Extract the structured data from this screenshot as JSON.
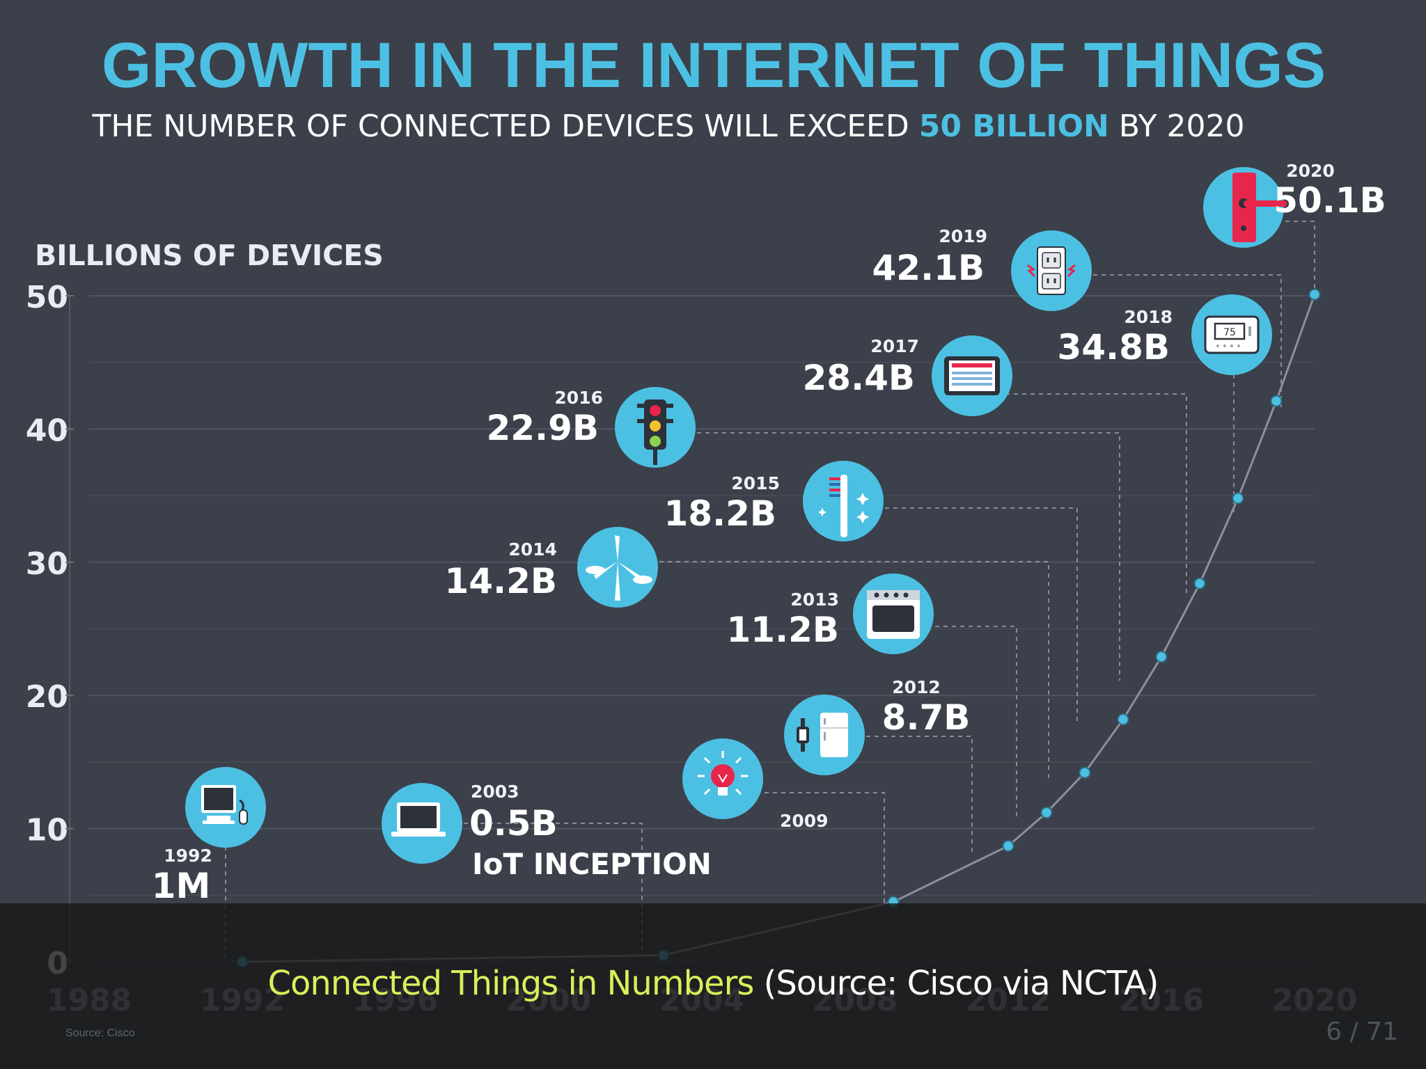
{
  "header": {
    "title": "GROWTH IN THE INTERNET OF THINGS",
    "subtitle_pre": "THE NUMBER OF CONNECTED DEVICES WILL EXCEED ",
    "subtitle_highlight": "50 BILLION",
    "subtitle_post": " BY 2020"
  },
  "chart_data": {
    "type": "line",
    "title": "GROWTH IN THE INTERNET OF THINGS",
    "subtitle": "THE NUMBER OF CONNECTED DEVICES WILL EXCEED 50 BILLION BY 2020",
    "xlabel": "",
    "ylabel": "BILLIONS OF DEVICES",
    "xlim": [
      1988,
      2020
    ],
    "ylim": [
      0,
      50
    ],
    "yticks": [
      0,
      10,
      20,
      30,
      40,
      50
    ],
    "xticks": [
      1988,
      1992,
      1996,
      2000,
      2004,
      2008,
      2012,
      2016,
      2020
    ],
    "xtick_labels": [
      "1988",
      "1992",
      "1996",
      "2000",
      "2004",
      "2008",
      "2012",
      "2016",
      "2020"
    ],
    "grid": true,
    "series": [
      {
        "x": [
          1992,
          2003,
          2009,
          2012,
          2013,
          2014,
          2015,
          2016,
          2017,
          2018,
          2019,
          2020
        ],
        "values": [
          0.001,
          0.5,
          4.5,
          8.7,
          11.2,
          14.2,
          18.2,
          22.9,
          28.4,
          34.8,
          42.1,
          50.1
        ]
      }
    ],
    "annotations": [
      {
        "year": "1992",
        "value_label": "1M",
        "x": 1992,
        "y": 0.001,
        "icon": "desktop-computer-icon"
      },
      {
        "year": "2003",
        "value_label": "0.5B",
        "note": "IoT INCEPTION",
        "x": 2003,
        "y": 0.5,
        "icon": "laptop-icon"
      },
      {
        "year": "2009",
        "value_label": "",
        "x": 2009,
        "y": 4.5,
        "icon": "light-bulb-icon"
      },
      {
        "year": "2012",
        "value_label": "8.7B",
        "x": 2012,
        "y": 8.7,
        "icon": "watch-fridge-icon"
      },
      {
        "year": "2013",
        "value_label": "11.2B",
        "x": 2013,
        "y": 11.2,
        "icon": "oven-icon"
      },
      {
        "year": "2014",
        "value_label": "14.2B",
        "x": 2014,
        "y": 14.2,
        "icon": "wind-turbine-icon"
      },
      {
        "year": "2015",
        "value_label": "18.2B",
        "x": 2015,
        "y": 18.2,
        "icon": "toothbrush-icon"
      },
      {
        "year": "2016",
        "value_label": "22.9B",
        "x": 2016,
        "y": 22.9,
        "icon": "traffic-light-icon"
      },
      {
        "year": "2017",
        "value_label": "28.4B",
        "x": 2017,
        "y": 28.4,
        "icon": "tablet-icon"
      },
      {
        "year": "2018",
        "value_label": "34.8B",
        "x": 2018,
        "y": 34.8,
        "icon": "thermostat-icon"
      },
      {
        "year": "2019",
        "value_label": "42.1B",
        "x": 2019,
        "y": 42.1,
        "icon": "power-outlet-icon"
      },
      {
        "year": "2020",
        "value_label": "50.1B",
        "x": 2020,
        "y": 50.1,
        "icon": "door-handle-icon"
      }
    ],
    "thermostat_display": "75",
    "source_note": "Source: Cisco"
  },
  "caption": {
    "link_text": "Connected Things in Numbers",
    "rest": " (Source: Cisco via NCTA)"
  },
  "page_indicator": "6 / 71",
  "colors": {
    "background": "#3b404a",
    "accent": "#4cc0e3",
    "icon_red": "#e8254a",
    "caption_link": "#d8f05a"
  }
}
